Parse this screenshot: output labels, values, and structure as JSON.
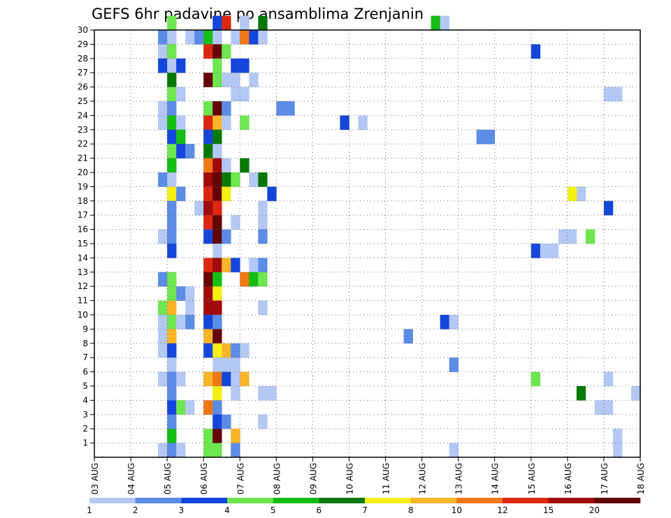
{
  "chart_data": {
    "type": "heatmap",
    "title": "GEFS 6hr padavine po ansamblima Zrenjanin",
    "x_ticks": [
      "03 AUG",
      "04 AUG",
      "05 AUG",
      "06 AUG",
      "07 AUG",
      "08 AUG",
      "09 AUG",
      "10 AUG",
      "11 AUG",
      "12 AUG",
      "13 AUG",
      "14 AUG",
      "15 AUG",
      "16 AUG",
      "17 AUG",
      "18 AUG"
    ],
    "y_ticks": [
      "1",
      "2",
      "3",
      "4",
      "5",
      "6",
      "7",
      "8",
      "9",
      "10",
      "11",
      "12",
      "13",
      "14",
      "15",
      "16",
      "17",
      "18",
      "19",
      "20",
      "21",
      "22",
      "23",
      "24",
      "25",
      "26",
      "27",
      "28",
      "29",
      "30"
    ],
    "xlim": [
      "2025-08-03T00",
      "2025-08-18T00"
    ],
    "time_step_hours": 6,
    "ylim": [
      0,
      30
    ],
    "grid": true,
    "colorbar": {
      "labels": [
        "1",
        "2",
        "3",
        "4",
        "5",
        "6",
        "7",
        "8",
        "10",
        "12",
        "15",
        "20"
      ],
      "colors": [
        "#b4c8f5",
        "#5b8ce6",
        "#1446dc",
        "#6ee650",
        "#14be14",
        "#087808",
        "#f5f014",
        "#fab428",
        "#f07814",
        "#dc280f",
        "#a00a0a",
        "#640505"
      ]
    },
    "cell_class_legend": "class index k = colour colors[k]; amount between colorbar labels[k] and labels[k+1] (mm per 6 h)",
    "cells": [
      [
        "2025-08-05T00",
        30,
        3
      ],
      [
        "2025-08-06T06",
        30,
        2
      ],
      [
        "2025-08-06T12",
        30,
        9
      ],
      [
        "2025-08-07T00",
        30,
        0
      ],
      [
        "2025-08-07T12",
        30,
        5
      ],
      [
        "2025-08-12T06",
        30,
        4
      ],
      [
        "2025-08-12T12",
        30,
        0
      ],
      [
        "2025-08-04T18",
        29,
        1
      ],
      [
        "2025-08-05T00",
        29,
        0
      ],
      [
        "2025-08-05T12",
        29,
        0
      ],
      [
        "2025-08-05T18",
        29,
        1
      ],
      [
        "2025-08-06T00",
        29,
        4
      ],
      [
        "2025-08-06T06",
        29,
        0
      ],
      [
        "2025-08-06T18",
        29,
        0
      ],
      [
        "2025-08-07T00",
        29,
        8
      ],
      [
        "2025-08-07T06",
        29,
        2
      ],
      [
        "2025-08-07T12",
        29,
        0
      ],
      [
        "2025-08-04T18",
        28,
        0
      ],
      [
        "2025-08-05T00",
        28,
        3
      ],
      [
        "2025-08-06T00",
        28,
        9
      ],
      [
        "2025-08-06T06",
        28,
        11
      ],
      [
        "2025-08-06T12",
        28,
        3
      ],
      [
        "2025-08-15T00",
        28,
        2
      ],
      [
        "2025-08-04T18",
        27,
        2
      ],
      [
        "2025-08-05T00",
        27,
        0
      ],
      [
        "2025-08-05T06",
        27,
        2
      ],
      [
        "2025-08-06T06",
        27,
        3
      ],
      [
        "2025-08-06T18",
        27,
        2
      ],
      [
        "2025-08-07T00",
        27,
        2
      ],
      [
        "2025-08-05T00",
        26,
        5
      ],
      [
        "2025-08-06T00",
        26,
        11
      ],
      [
        "2025-08-06T06",
        26,
        3
      ],
      [
        "2025-08-06T12",
        26,
        0
      ],
      [
        "2025-08-06T18",
        26,
        0
      ],
      [
        "2025-08-07T06",
        26,
        0
      ],
      [
        "2025-08-05T00",
        25,
        3
      ],
      [
        "2025-08-05T06",
        25,
        0
      ],
      [
        "2025-08-06T18",
        25,
        0
      ],
      [
        "2025-08-07T00",
        25,
        0
      ],
      [
        "2025-08-17T00",
        25,
        0
      ],
      [
        "2025-08-17T06",
        25,
        0
      ],
      [
        "2025-08-04T18",
        24,
        0
      ],
      [
        "2025-08-05T00",
        24,
        1
      ],
      [
        "2025-08-06T00",
        24,
        3
      ],
      [
        "2025-08-06T06",
        24,
        11
      ],
      [
        "2025-08-06T12",
        24,
        1
      ],
      [
        "2025-08-08T00",
        24,
        1
      ],
      [
        "2025-08-08T06",
        24,
        1
      ],
      [
        "2025-08-04T18",
        23,
        0
      ],
      [
        "2025-08-05T00",
        23,
        4
      ],
      [
        "2025-08-05T06",
        23,
        0
      ],
      [
        "2025-08-06T00",
        23,
        9
      ],
      [
        "2025-08-06T06",
        23,
        7
      ],
      [
        "2025-08-06T12",
        23,
        0
      ],
      [
        "2025-08-07T00",
        23,
        3
      ],
      [
        "2025-08-09T18",
        23,
        2
      ],
      [
        "2025-08-10T06",
        23,
        0
      ],
      [
        "2025-08-05T00",
        22,
        2
      ],
      [
        "2025-08-05T06",
        22,
        4
      ],
      [
        "2025-08-06T00",
        22,
        2
      ],
      [
        "2025-08-06T06",
        22,
        5
      ],
      [
        "2025-08-13T12",
        22,
        1
      ],
      [
        "2025-08-13T18",
        22,
        1
      ],
      [
        "2025-08-05T00",
        21,
        3
      ],
      [
        "2025-08-05T06",
        21,
        2
      ],
      [
        "2025-08-05T12",
        21,
        1
      ],
      [
        "2025-08-06T00",
        21,
        5
      ],
      [
        "2025-08-06T06",
        21,
        0
      ],
      [
        "2025-08-05T00",
        20,
        4
      ],
      [
        "2025-08-06T00",
        20,
        8
      ],
      [
        "2025-08-06T06",
        20,
        10
      ],
      [
        "2025-08-06T12",
        20,
        0
      ],
      [
        "2025-08-07T00",
        20,
        5
      ],
      [
        "2025-08-04T18",
        19,
        1
      ],
      [
        "2025-08-05T00",
        19,
        0
      ],
      [
        "2025-08-06T00",
        19,
        10
      ],
      [
        "2025-08-06T06",
        19,
        11
      ],
      [
        "2025-08-06T12",
        19,
        5
      ],
      [
        "2025-08-06T18",
        19,
        3
      ],
      [
        "2025-08-07T06",
        19,
        0
      ],
      [
        "2025-08-07T12",
        19,
        5
      ],
      [
        "2025-08-05T00",
        18,
        6
      ],
      [
        "2025-08-05T06",
        18,
        1
      ],
      [
        "2025-08-06T00",
        18,
        9
      ],
      [
        "2025-08-06T06",
        18,
        11
      ],
      [
        "2025-08-06T12",
        18,
        6
      ],
      [
        "2025-08-07T18",
        18,
        2
      ],
      [
        "2025-08-15T30",
        18,
        0
      ],
      [
        "2025-08-16T00",
        18,
        6
      ],
      [
        "2025-08-05T00",
        17,
        1
      ],
      [
        "2025-08-05T18",
        17,
        0
      ],
      [
        "2025-08-06T00",
        17,
        10
      ],
      [
        "2025-08-06T06",
        17,
        9
      ],
      [
        "2025-08-07T12",
        17,
        0
      ],
      [
        "2025-08-17T00",
        17,
        2
      ],
      [
        "2025-08-05T00",
        16,
        1
      ],
      [
        "2025-08-06T00",
        16,
        9
      ],
      [
        "2025-08-06T06",
        16,
        11
      ],
      [
        "2025-08-06T18",
        16,
        0
      ],
      [
        "2025-08-07T12",
        16,
        0
      ],
      [
        "2025-08-04T18",
        15,
        0
      ],
      [
        "2025-08-05T00",
        15,
        1
      ],
      [
        "2025-08-06T00",
        15,
        2
      ],
      [
        "2025-08-06T06",
        15,
        11
      ],
      [
        "2025-08-06T12",
        15,
        1
      ],
      [
        "2025-08-07T12",
        15,
        1
      ],
      [
        "2025-08-15T18",
        15,
        0
      ],
      [
        "2025-08-16T00",
        15,
        0
      ],
      [
        "2025-08-16T12",
        15,
        3
      ],
      [
        "2025-08-05T00",
        14,
        2
      ],
      [
        "2025-08-06T06",
        14,
        0
      ],
      [
        "2025-08-15T00",
        14,
        2
      ],
      [
        "2025-08-15T06",
        14,
        0
      ],
      [
        "2025-08-15T12",
        14,
        0
      ],
      [
        "2025-08-06T00",
        13,
        9
      ],
      [
        "2025-08-06T06",
        13,
        10
      ],
      [
        "2025-08-06T12",
        13,
        7
      ],
      [
        "2025-08-06T18",
        13,
        2
      ],
      [
        "2025-08-07T06",
        13,
        0
      ],
      [
        "2025-08-07T12",
        13,
        1
      ],
      [
        "2025-08-04T18",
        12,
        1
      ],
      [
        "2025-08-05T00",
        12,
        3
      ],
      [
        "2025-08-06T00",
        12,
        11
      ],
      [
        "2025-08-06T06",
        12,
        4
      ],
      [
        "2025-08-07T00",
        12,
        8
      ],
      [
        "2025-08-07T06",
        12,
        4
      ],
      [
        "2025-08-07T12",
        12,
        3
      ],
      [
        "2025-08-05T00",
        11,
        3
      ],
      [
        "2025-08-05T06",
        11,
        1
      ],
      [
        "2025-08-05T12",
        11,
        0
      ],
      [
        "2025-08-06T00",
        11,
        10
      ],
      [
        "2025-08-06T06",
        11,
        6
      ],
      [
        "2025-08-04T18",
        10,
        3
      ],
      [
        "2025-08-05T00",
        10,
        7
      ],
      [
        "2025-08-05T12",
        10,
        0
      ],
      [
        "2025-08-06T00",
        10,
        10
      ],
      [
        "2025-08-06T06",
        10,
        10
      ],
      [
        "2025-08-07T12",
        10,
        0
      ],
      [
        "2025-08-04T18",
        9,
        0
      ],
      [
        "2025-08-05T00",
        9,
        3
      ],
      [
        "2025-08-05T06",
        9,
        0
      ],
      [
        "2025-08-05T12",
        9,
        1
      ],
      [
        "2025-08-06T00",
        9,
        2
      ],
      [
        "2025-08-06T06",
        9,
        1
      ],
      [
        "2025-08-12T12",
        9,
        2
      ],
      [
        "2025-08-12T18",
        9,
        0
      ],
      [
        "2025-08-04T18",
        8,
        0
      ],
      [
        "2025-08-05T00",
        8,
        7
      ],
      [
        "2025-08-06T00",
        8,
        7
      ],
      [
        "2025-08-06T06",
        8,
        11
      ],
      [
        "2025-08-11T12",
        8,
        1
      ],
      [
        "2025-08-04T18",
        7,
        0
      ],
      [
        "2025-08-05T00",
        7,
        2
      ],
      [
        "2025-08-06T00",
        7,
        2
      ],
      [
        "2025-08-06T06",
        7,
        6
      ],
      [
        "2025-08-06T12",
        7,
        7
      ],
      [
        "2025-08-06T18",
        7,
        1
      ],
      [
        "2025-08-07T00",
        7,
        0
      ],
      [
        "2025-08-05T00",
        6,
        0
      ],
      [
        "2025-08-06T06",
        6,
        0
      ],
      [
        "2025-08-06T12",
        6,
        0
      ],
      [
        "2025-08-06T18",
        6,
        0
      ],
      [
        "2025-08-12T18",
        6,
        1
      ],
      [
        "2025-08-04T18",
        5,
        0
      ],
      [
        "2025-08-05T00",
        5,
        1
      ],
      [
        "2025-08-05T06",
        5,
        0
      ],
      [
        "2025-08-06T00",
        5,
        7
      ],
      [
        "2025-08-06T06",
        5,
        8
      ],
      [
        "2025-08-06T12",
        5,
        2
      ],
      [
        "2025-08-06T18",
        5,
        0
      ],
      [
        "2025-08-07T00",
        5,
        7
      ],
      [
        "2025-08-15T00",
        5,
        3
      ],
      [
        "2025-08-17T00",
        5,
        0
      ],
      [
        "2025-08-05T00",
        4,
        1
      ],
      [
        "2025-08-06T06",
        4,
        6
      ],
      [
        "2025-08-06T18",
        4,
        0
      ],
      [
        "2025-08-07T12",
        4,
        0
      ],
      [
        "2025-08-07T18",
        4,
        0
      ],
      [
        "2025-08-16T06",
        4,
        5
      ],
      [
        "2025-08-17T18",
        4,
        0
      ],
      [
        "2025-08-05T00",
        3,
        2
      ],
      [
        "2025-08-05T06",
        3,
        3
      ],
      [
        "2025-08-05T12",
        3,
        0
      ],
      [
        "2025-08-06T00",
        3,
        8
      ],
      [
        "2025-08-06T06",
        3,
        1
      ],
      [
        "2025-08-16T18",
        3,
        0
      ],
      [
        "2025-08-17T00",
        3,
        0
      ],
      [
        "2025-08-05T00",
        2,
        1
      ],
      [
        "2025-08-06T06",
        2,
        2
      ],
      [
        "2025-08-06T12",
        2,
        1
      ],
      [
        "2025-08-07T12",
        2,
        0
      ],
      [
        "2025-08-05T00",
        1,
        4
      ],
      [
        "2025-08-06T00",
        1,
        3
      ],
      [
        "2025-08-06T06",
        1,
        11
      ],
      [
        "2025-08-06T18",
        1,
        7
      ],
      [
        "2025-08-17T06",
        1,
        0
      ],
      [
        "2025-08-04T18",
        0,
        0
      ],
      [
        "2025-08-05T00",
        0,
        1
      ],
      [
        "2025-08-05T06",
        0,
        0
      ],
      [
        "2025-08-06T00",
        0,
        3
      ],
      [
        "2025-08-06T06",
        0,
        3
      ],
      [
        "2025-08-06T18",
        0,
        1
      ],
      [
        "2025-08-12T18",
        0,
        0
      ],
      [
        "2025-08-17T06",
        0,
        0
      ]
    ]
  }
}
